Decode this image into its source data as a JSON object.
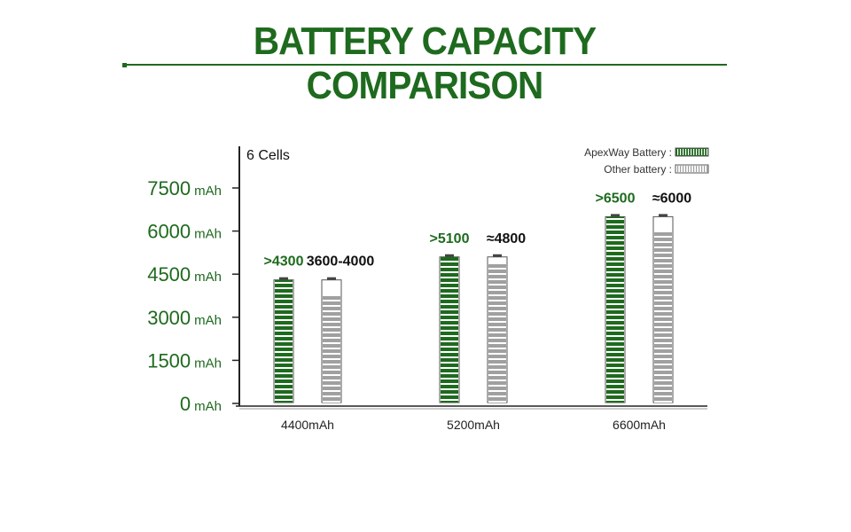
{
  "header": {
    "title": "BATTERY CAPACITY COMPARISON"
  },
  "chart_data": {
    "type": "bar",
    "title": "BATTERY CAPACITY COMPARISON",
    "annotation": "6 Cells",
    "categories": [
      "4400mAh",
      "5200mAh",
      "6600mAh"
    ],
    "y_unit": "mAh",
    "y_ticks": [
      0,
      1500,
      3000,
      4500,
      6000,
      7500
    ],
    "ylim": [
      0,
      7500
    ],
    "legend_position": "top-right",
    "series": [
      {
        "name": "ApexWay Battery :",
        "values": [
          4300,
          5100,
          6500
        ],
        "labels": [
          ">4300",
          ">5100",
          ">6500"
        ],
        "color": "#1e6a1e"
      },
      {
        "name": "Other battery :",
        "values": [
          3800,
          4800,
          6000
        ],
        "labels": [
          "3600-4000",
          "≈4800",
          "≈6000"
        ],
        "color": "#a0a0a0"
      }
    ],
    "battery_shell_levels": [
      4300,
      5100,
      6500
    ]
  }
}
